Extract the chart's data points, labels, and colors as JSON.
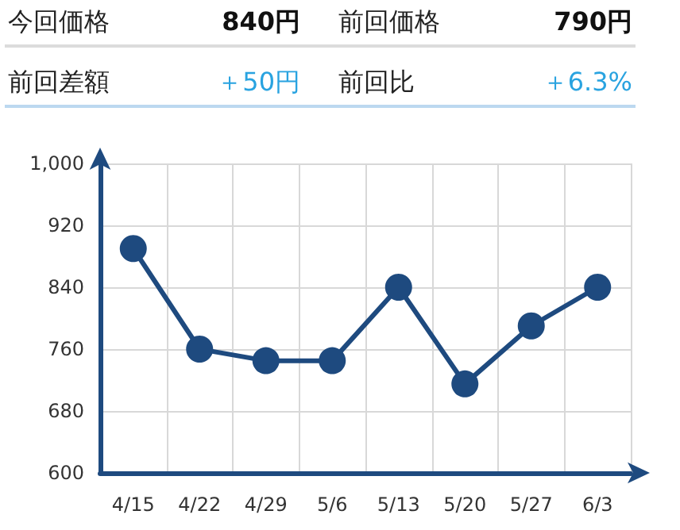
{
  "chart_data": {
    "type": "line",
    "annotations": [
      "今回価格",
      "840円",
      "前回価格",
      "790円",
      "前回差額",
      "＋50円",
      "前回比",
      "＋6.3%"
    ],
    "categories": [
      "4/15",
      "4/22",
      "4/29",
      "5/6",
      "5/13",
      "5/20",
      "5/27",
      "6/3"
    ],
    "series": [
      {
        "color": "#1e4a7f",
        "values": [
          890,
          760,
          745,
          745,
          840,
          715,
          790,
          840
        ]
      }
    ],
    "ylim": [
      600,
      1000
    ],
    "yticks": [
      600,
      680,
      760,
      840,
      920,
      {
        "value": 1000,
        "label": "1,000"
      }
    ],
    "grid": true,
    "marker": "circle",
    "line_style": "solid"
  }
}
